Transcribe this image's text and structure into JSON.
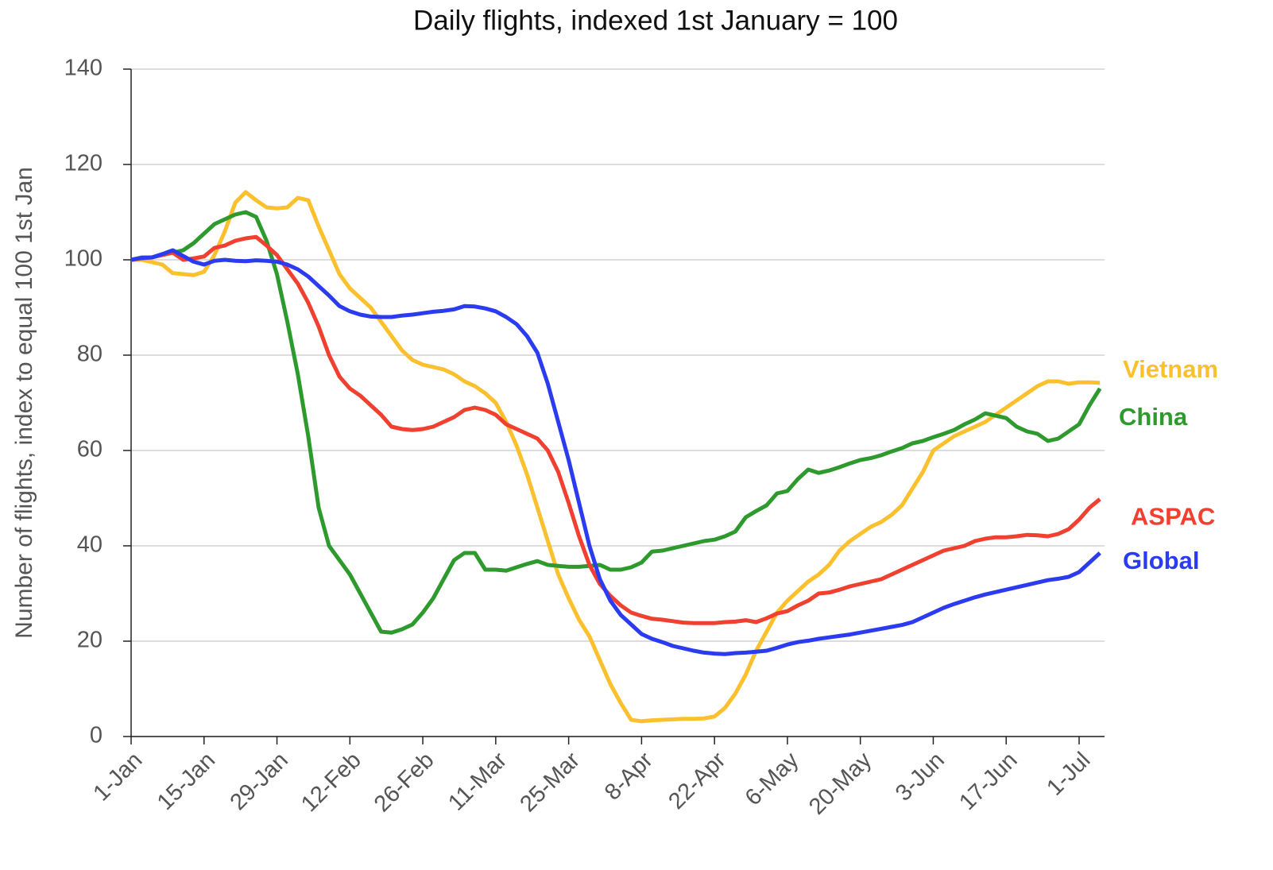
{
  "chart_data": {
    "type": "line",
    "title": "Daily flights, indexed 1st January = 100",
    "y_label": "Number of flights, index to equal 100 1st Jan",
    "categories": [
      "1-Jan",
      null,
      null,
      null,
      null,
      null,
      null,
      "15-Jan",
      null,
      null,
      null,
      null,
      null,
      null,
      "29-Jan",
      null,
      null,
      null,
      null,
      null,
      null,
      "12-Feb",
      null,
      null,
      null,
      null,
      null,
      null,
      "26-Feb",
      null,
      null,
      null,
      null,
      null,
      null,
      "11-Mar",
      null,
      null,
      null,
      null,
      null,
      null,
      "25-Mar",
      null,
      null,
      null,
      null,
      null,
      null,
      "8-Apr",
      null,
      null,
      null,
      null,
      null,
      null,
      "22-Apr",
      null,
      null,
      null,
      null,
      null,
      null,
      "6-May",
      null,
      null,
      null,
      null,
      null,
      null,
      "20-May",
      null,
      null,
      null,
      null,
      null,
      null,
      "3-Jun",
      null,
      null,
      null,
      null,
      null,
      null,
      "17-Jun",
      null,
      null,
      null,
      null,
      null,
      null,
      "1-Jul",
      null,
      null
    ],
    "ylim": [
      0,
      140
    ],
    "yticks": [
      0,
      20,
      40,
      60,
      80,
      100,
      120,
      140
    ],
    "grid": true,
    "legend": "end-labels",
    "series": [
      {
        "name": "Vietnam",
        "color": "#fbc02d",
        "values": [
          100,
          100,
          99.5,
          99,
          97.2,
          97,
          96.8,
          97.5,
          101,
          106,
          112,
          114.2,
          112.5,
          111,
          110.8,
          111,
          113,
          112.5,
          107,
          102,
          97,
          94,
          92,
          90,
          87,
          84,
          81,
          79,
          78,
          77.5,
          77,
          76,
          74.5,
          73.5,
          72,
          70,
          66,
          61,
          55,
          48,
          41,
          34,
          29,
          24.5,
          21,
          16,
          11,
          7,
          3.5,
          3.2,
          3.4,
          3.5,
          3.6,
          3.7,
          3.7,
          3.8,
          4.2,
          6,
          9,
          13,
          18,
          22,
          26,
          28.5,
          30.5,
          32.5,
          34,
          36,
          39,
          41,
          42.5,
          44,
          45,
          46.5,
          48.5,
          52,
          55.5,
          60,
          61.5,
          63,
          64,
          65,
          66,
          67.5,
          69,
          70.5,
          72,
          73.5,
          74.5,
          74.5,
          74,
          74.3,
          74.3,
          74.2
        ]
      },
      {
        "name": "China",
        "color": "#2e9a2e",
        "values": [
          100,
          100.5,
          100.5,
          101,
          101.5,
          102,
          103.5,
          105.5,
          107.5,
          108.5,
          109.5,
          110,
          109,
          104,
          97,
          87,
          76,
          63,
          48,
          40,
          37,
          34,
          30,
          26,
          22,
          21.8,
          22.5,
          23.5,
          26,
          29,
          33,
          37,
          38.5,
          38.5,
          35,
          35,
          34.8,
          35.5,
          36.2,
          36.8,
          36,
          35.8,
          35.6,
          35.6,
          35.8,
          36,
          35,
          35,
          35.5,
          36.5,
          38.8,
          39,
          39.5,
          40,
          40.5,
          41,
          41.3,
          42,
          43,
          46,
          47.3,
          48.5,
          51,
          51.5,
          54,
          56,
          55.3,
          55.8,
          56.5,
          57.3,
          58,
          58.4,
          59,
          59.8,
          60.5,
          61.5,
          62,
          62.8,
          63.5,
          64.3,
          65.5,
          66.5,
          67.8,
          67.3,
          66.8,
          65,
          64,
          63.5,
          62,
          62.5,
          64,
          65.5,
          69.5,
          73
        ]
      },
      {
        "name": "ASPAC",
        "color": "#f04030",
        "values": [
          100,
          100.3,
          100.5,
          101,
          101.5,
          100,
          100.3,
          100.7,
          102.5,
          103,
          104,
          104.5,
          104.8,
          103,
          101,
          98,
          95,
          91,
          86,
          80,
          75.5,
          73,
          71.5,
          69.5,
          67.5,
          65,
          64.5,
          64.3,
          64.5,
          65,
          66,
          67,
          68.5,
          69,
          68.5,
          67.5,
          65.5,
          64.5,
          63.5,
          62.5,
          60,
          55.5,
          49,
          42,
          36,
          32,
          29.5,
          27.5,
          26,
          25.3,
          24.7,
          24.5,
          24.2,
          23.9,
          23.8,
          23.8,
          23.8,
          24,
          24.1,
          24.4,
          24,
          24.8,
          25.8,
          26.3,
          27.5,
          28.5,
          30,
          30.2,
          30.8,
          31.5,
          32,
          32.5,
          33,
          34,
          35,
          36,
          37,
          38,
          39,
          39.5,
          40,
          41,
          41.5,
          41.8,
          41.8,
          42,
          42.3,
          42.2,
          42,
          42.5,
          43.5,
          45.5,
          48,
          49.8
        ]
      },
      {
        "name": "Global",
        "color": "#2b3cf0",
        "values": [
          100,
          100.4,
          100.5,
          101.2,
          102,
          100.8,
          99.6,
          99,
          99.8,
          100,
          99.8,
          99.7,
          99.9,
          99.8,
          99.6,
          99,
          98,
          96.5,
          94.5,
          92.5,
          90.3,
          89.2,
          88.5,
          88.1,
          88,
          88,
          88.3,
          88.5,
          88.8,
          89.1,
          89.3,
          89.6,
          90.3,
          90.2,
          89.8,
          89.2,
          88,
          86.5,
          84,
          80.5,
          74,
          66,
          58,
          49,
          40,
          33,
          28.5,
          25.5,
          23.5,
          21.5,
          20.5,
          19.8,
          19,
          18.5,
          18,
          17.6,
          17.4,
          17.3,
          17.5,
          17.6,
          17.8,
          18,
          18.6,
          19.3,
          19.8,
          20.1,
          20.5,
          20.8,
          21.1,
          21.4,
          21.8,
          22.2,
          22.6,
          23,
          23.4,
          24,
          25,
          26,
          27,
          27.8,
          28.5,
          29.2,
          29.8,
          30.3,
          30.8,
          31.3,
          31.8,
          32.3,
          32.8,
          33.1,
          33.5,
          34.5,
          36.5,
          38.5
        ]
      }
    ]
  }
}
